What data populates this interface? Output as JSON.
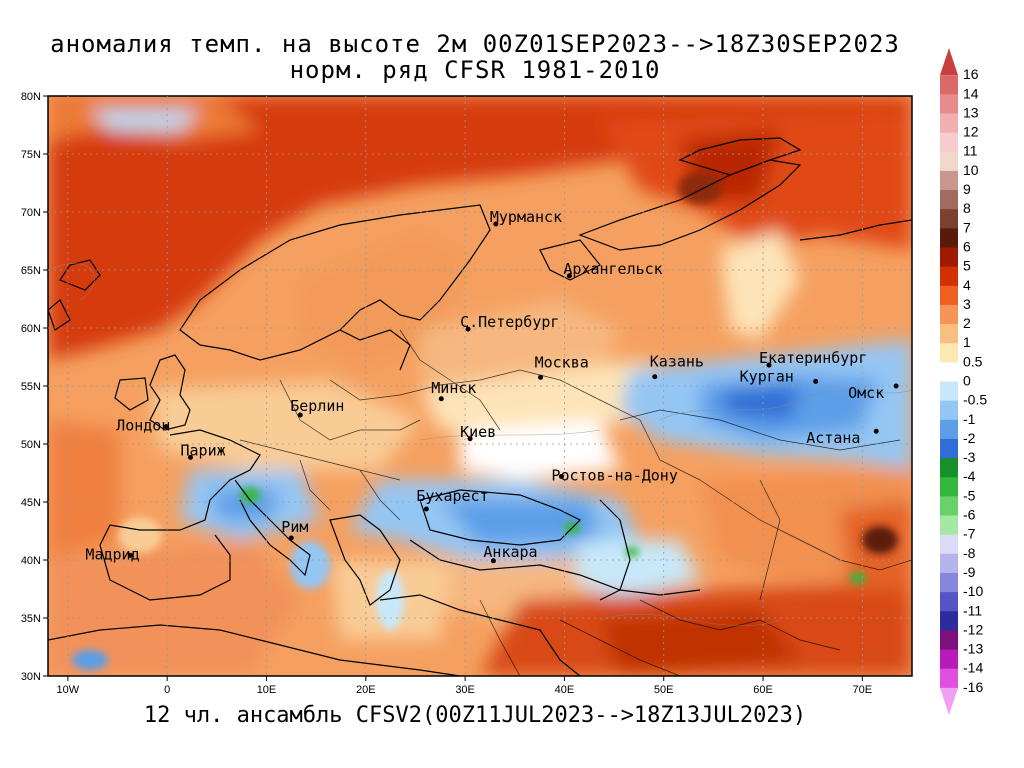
{
  "title_line1": "аномалия темп. на высоте 2м 00Z01SEP2023-->18Z30SEP2023",
  "title_line2": "норм. ряд CFSR 1981-2010",
  "footer": "12 чл. ансамбль CFSV2(00Z11JUL2023-->18Z13JUL2023)",
  "map": {
    "lon_range": [
      -12,
      75
    ],
    "lat_range": [
      30,
      80
    ],
    "lon_ticks": [
      "10W",
      "0",
      "10E",
      "20E",
      "30E",
      "40E",
      "50E",
      "60E",
      "70E"
    ],
    "lat_ticks": [
      "30N",
      "35N",
      "40N",
      "45N",
      "50N",
      "55N",
      "60N",
      "65N",
      "70N",
      "75N",
      "80N"
    ],
    "cities": [
      {
        "name": "Мурманск",
        "lon": 33.1,
        "lat": 68.97
      },
      {
        "name": "Архангельск",
        "lon": 40.5,
        "lat": 64.5
      },
      {
        "name": "С.Петербург",
        "lon": 30.3,
        "lat": 59.9
      },
      {
        "name": "Москва",
        "lon": 37.6,
        "lat": 55.75
      },
      {
        "name": "Казань",
        "lon": 49.1,
        "lat": 55.8
      },
      {
        "name": "Екатеринбург",
        "lon": 60.6,
        "lat": 56.8
      },
      {
        "name": "Курган",
        "lon": 65.3,
        "lat": 55.4
      },
      {
        "name": "Омск",
        "lon": 73.4,
        "lat": 55.0
      },
      {
        "name": "Астана",
        "lon": 71.4,
        "lat": 51.1
      },
      {
        "name": "Минск",
        "lon": 27.6,
        "lat": 53.9
      },
      {
        "name": "Берлин",
        "lon": 13.4,
        "lat": 52.5
      },
      {
        "name": "Лондон",
        "lon": -0.1,
        "lat": 51.5
      },
      {
        "name": "Париж",
        "lon": 2.35,
        "lat": 48.85
      },
      {
        "name": "Киев",
        "lon": 30.5,
        "lat": 50.45
      },
      {
        "name": "Ростов-на-Дону",
        "lon": 39.7,
        "lat": 47.2
      },
      {
        "name": "Бухарест",
        "lon": 26.1,
        "lat": 44.4
      },
      {
        "name": "Рим",
        "lon": 12.5,
        "lat": 41.9
      },
      {
        "name": "Мадрид",
        "lon": -3.7,
        "lat": 40.4
      },
      {
        "name": "Анкара",
        "lon": 32.85,
        "lat": 39.93
      }
    ]
  },
  "colorbar": {
    "labels": [
      "16",
      "14",
      "13",
      "12",
      "11",
      "10",
      "9",
      "8",
      "7",
      "6",
      "5",
      "4",
      "3",
      "2",
      "1",
      "0.5",
      "0",
      "-0.5",
      "-1",
      "-2",
      "-3",
      "-4",
      "-5",
      "-6",
      "-7",
      "-8",
      "-9",
      "-10",
      "-11",
      "-12",
      "-13",
      "-14",
      "-16"
    ],
    "colors": [
      "#c8403e",
      "#da6a68",
      "#e68c8c",
      "#f0b0b0",
      "#f6cccc",
      "#f0d8cc",
      "#c89890",
      "#a06c60",
      "#7c4030",
      "#5a1a0a",
      "#a01a00",
      "#d23000",
      "#ed6020",
      "#f59456",
      "#f8c080",
      "#fce8b0",
      "#ffffff",
      "#c8e8fa",
      "#94c6f4",
      "#5c9ee8",
      "#2e6ed6",
      "#18902a",
      "#34b83c",
      "#68d268",
      "#a4e8a4",
      "#dcdcf8",
      "#b4b4ec",
      "#8686dc",
      "#5454c6",
      "#2c2c9c",
      "#7c107c",
      "#b81cb8",
      "#e050e0",
      "#f0a0f0"
    ]
  }
}
